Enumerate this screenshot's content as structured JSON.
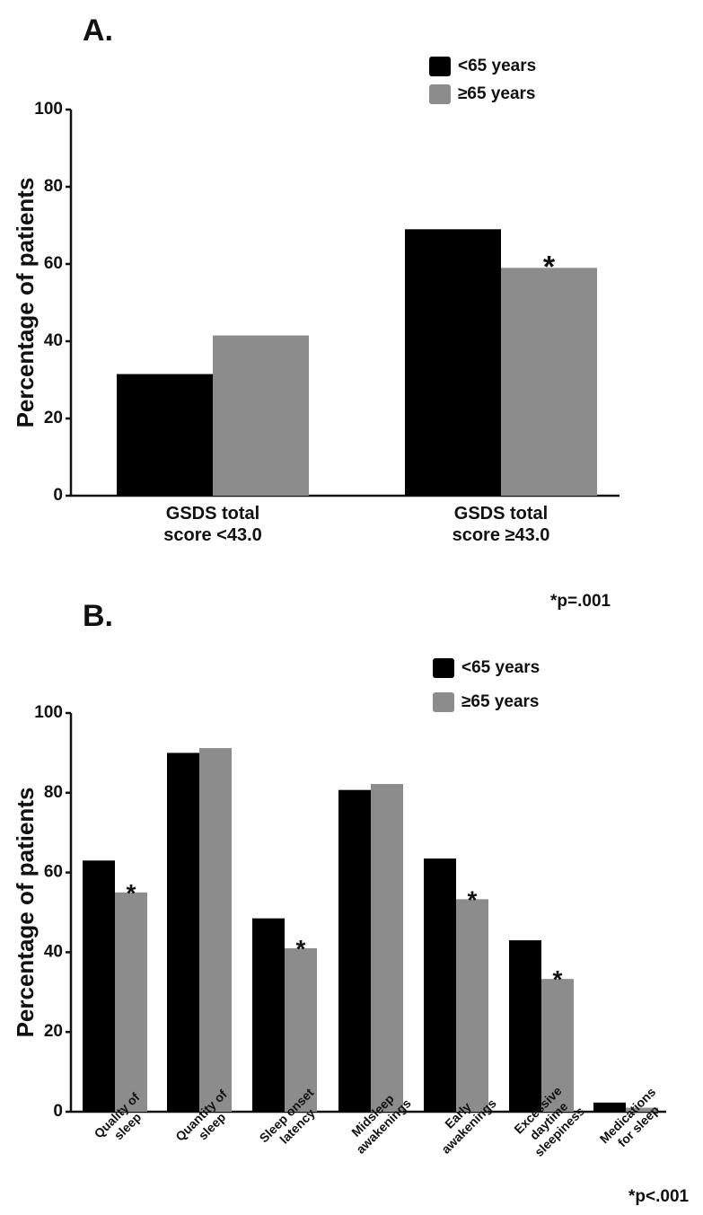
{
  "chart_data": [
    {
      "type": "bar",
      "panel_label": "A.",
      "categories": [
        [
          "GSDS total",
          "score <43.0"
        ],
        [
          "GSDS total",
          "score ≥43.0"
        ]
      ],
      "series": [
        {
          "name": "<65 years",
          "values": [
            31.5,
            69
          ],
          "color": "#000000"
        },
        {
          "name": "≥65 years",
          "values": [
            41.5,
            59
          ],
          "color": "#8c8c8c"
        }
      ],
      "significance_markers": [
        {
          "category_index": 1,
          "series_index": 1,
          "symbol": "*"
        }
      ],
      "ylabel": "Percentage of patients",
      "ylim": [
        0,
        100
      ],
      "yticks": [
        0,
        20,
        40,
        60,
        80,
        100
      ],
      "note": "*p=.001",
      "legend": "top-right",
      "grid": false
    },
    {
      "type": "bar",
      "panel_label": "B.",
      "categories": [
        [
          "Quality of",
          "sleep"
        ],
        [
          "Quantity of",
          "sleep"
        ],
        [
          "Sleep onset",
          "latency"
        ],
        [
          "Midsleep",
          "awakenings"
        ],
        [
          "Early",
          "awakenings"
        ],
        [
          "Excessive",
          "daytime",
          "sleepiness"
        ],
        [
          "Medications",
          "for sleep"
        ]
      ],
      "series": [
        {
          "name": "<65 years",
          "values": [
            63,
            90,
            48.5,
            80.7,
            63.5,
            43,
            2.3
          ],
          "color": "#000000"
        },
        {
          "name": "≥65 years",
          "values": [
            55,
            91.2,
            41,
            82.2,
            53.3,
            33.3,
            1
          ],
          "color": "#8c8c8c"
        }
      ],
      "significance_markers": [
        {
          "category_index": 0,
          "series_index": 1,
          "symbol": "*"
        },
        {
          "category_index": 2,
          "series_index": 1,
          "symbol": "*"
        },
        {
          "category_index": 4,
          "series_index": 1,
          "symbol": "*"
        },
        {
          "category_index": 5,
          "series_index": 1,
          "symbol": "*"
        }
      ],
      "ylabel": "Percentage of patients",
      "ylim": [
        0,
        100
      ],
      "yticks": [
        0,
        20,
        40,
        60,
        80,
        100
      ],
      "note": "*p<.001",
      "legend": "top-right",
      "grid": false
    }
  ]
}
